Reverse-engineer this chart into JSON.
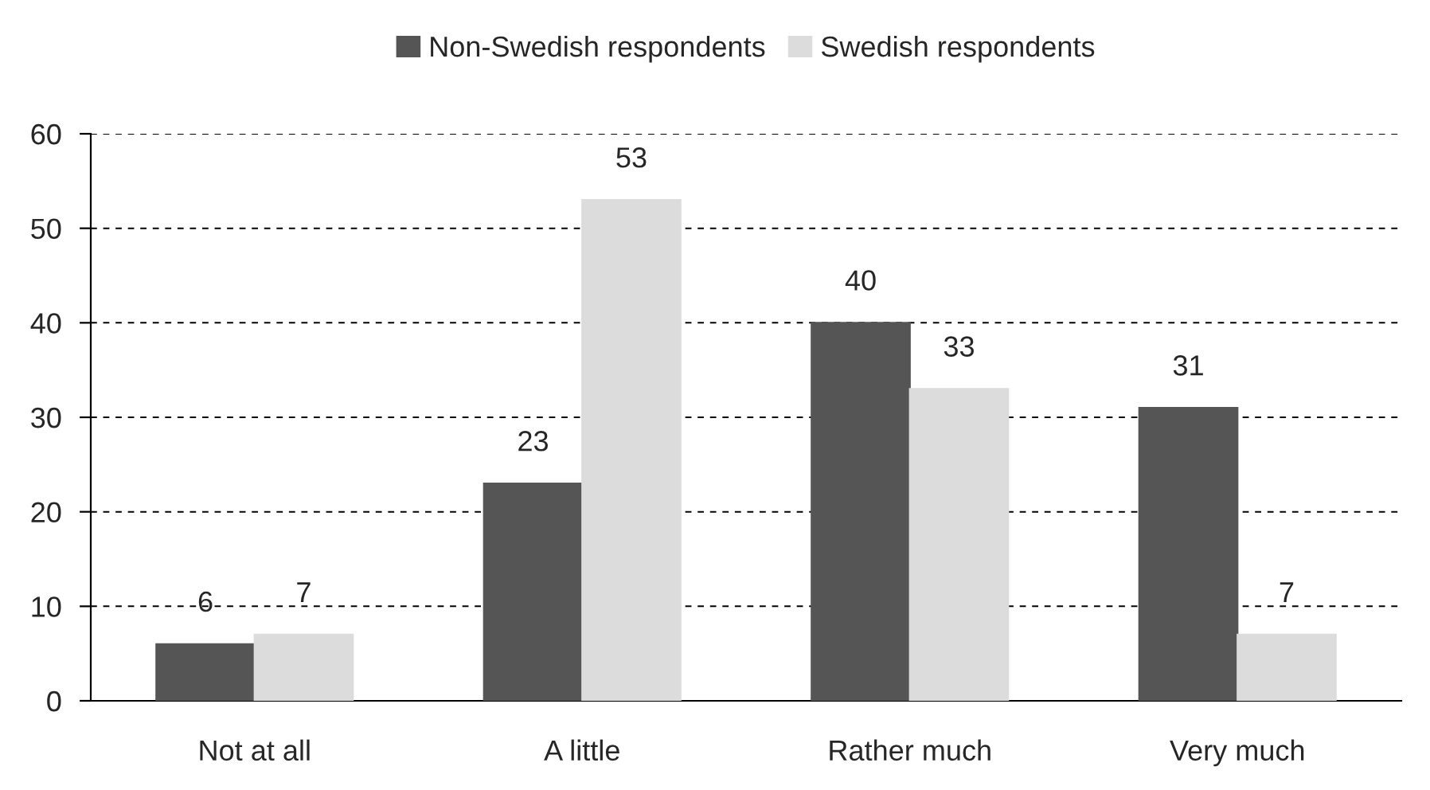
{
  "chart_data": {
    "type": "bar",
    "categories": [
      "Not at all",
      "A little",
      "Rather much",
      "Very much"
    ],
    "series": [
      {
        "name": "Non-Swedish respondents",
        "color": "#555555",
        "values": [
          6,
          23,
          40,
          31
        ]
      },
      {
        "name": "Swedish respondents",
        "color": "#dcdcdc",
        "values": [
          7,
          53,
          33,
          7
        ]
      }
    ],
    "ylim": [
      0,
      60
    ],
    "yticks": [
      0,
      10,
      20,
      30,
      40,
      50,
      60
    ],
    "grid": "y",
    "legend": "top",
    "data_labels": true
  }
}
